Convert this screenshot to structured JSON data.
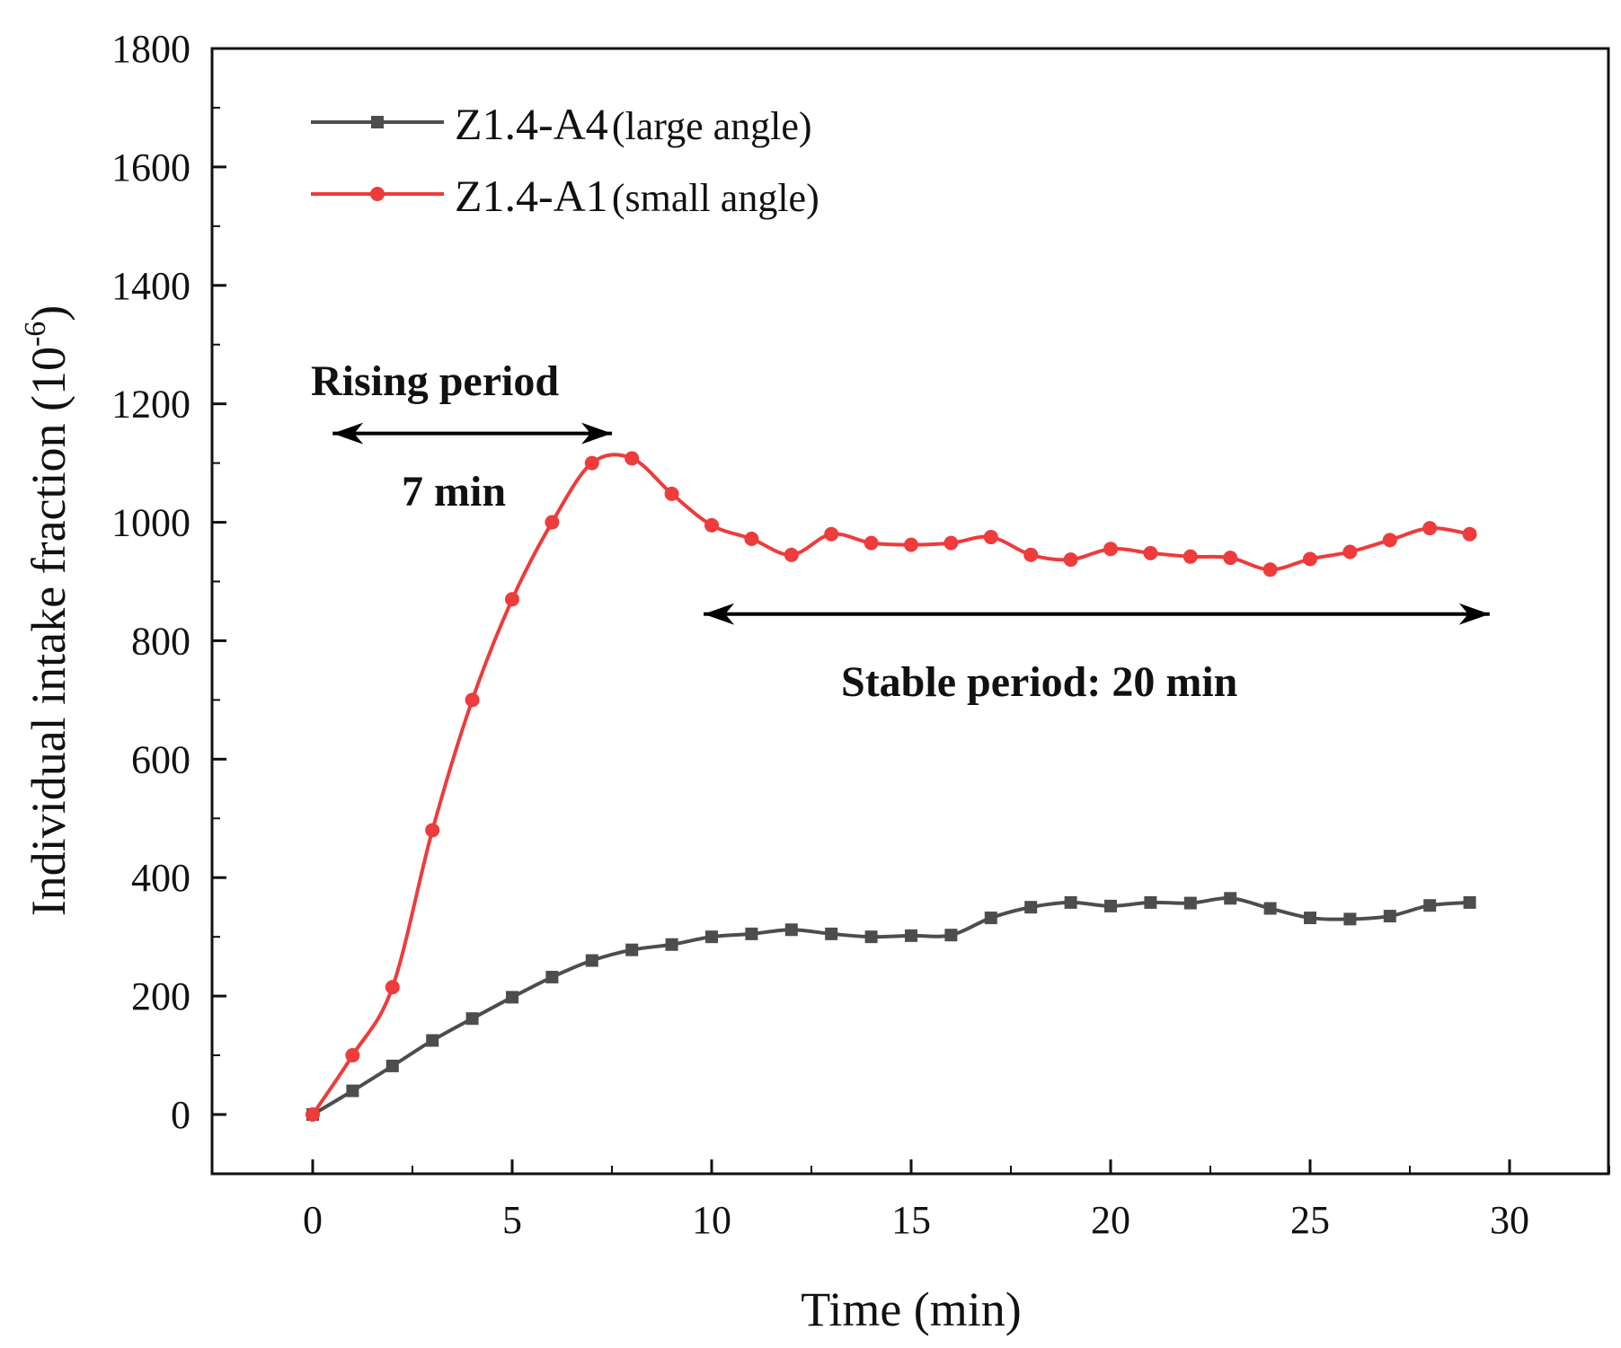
{
  "chart_data": {
    "type": "line",
    "title": "",
    "xlabel": "Time (min)",
    "ylabel": "Individual intake fraction (10",
    "ylabel_sup": "-6",
    "ylabel_end": ")",
    "xlim": [
      -2.5,
      32.5
    ],
    "ylim": [
      -100,
      1800
    ],
    "xticks": [
      0,
      5,
      10,
      15,
      20,
      25,
      30
    ],
    "yticks": [
      0,
      200,
      400,
      600,
      800,
      1000,
      1200,
      1400,
      1600,
      1800
    ],
    "grid": false,
    "legend_position": "top-left",
    "x": [
      0,
      1,
      2,
      3,
      4,
      5,
      6,
      7,
      8,
      9,
      10,
      11,
      12,
      13,
      14,
      15,
      16,
      17,
      18,
      19,
      20,
      21,
      22,
      23,
      24,
      25,
      26,
      27,
      28,
      29
    ],
    "series": [
      {
        "name": "Z1.4-A4",
        "note": "(large angle)",
        "color": "#4d4d4d",
        "marker": "square",
        "values": [
          0,
          40,
          82,
          125,
          162,
          198,
          232,
          260,
          278,
          287,
          300,
          305,
          312,
          305,
          300,
          302,
          303,
          332,
          350,
          358,
          352,
          358,
          357,
          365,
          348,
          332,
          330,
          335,
          353,
          358
        ]
      },
      {
        "name": "Z1.4-A1",
        "note": "(small angle)",
        "color": "#ee3b3b",
        "marker": "circle",
        "values": [
          0,
          100,
          215,
          480,
          700,
          870,
          1000,
          1100,
          1108,
          1048,
          995,
          972,
          945,
          980,
          965,
          962,
          965,
          975,
          945,
          937,
          955,
          948,
          942,
          940,
          920,
          938,
          950,
          970,
          990,
          980
        ]
      }
    ],
    "annotations": {
      "rising_title": "Rising period",
      "rising_duration": "7 min",
      "stable": "Stable period:   20 min"
    }
  }
}
